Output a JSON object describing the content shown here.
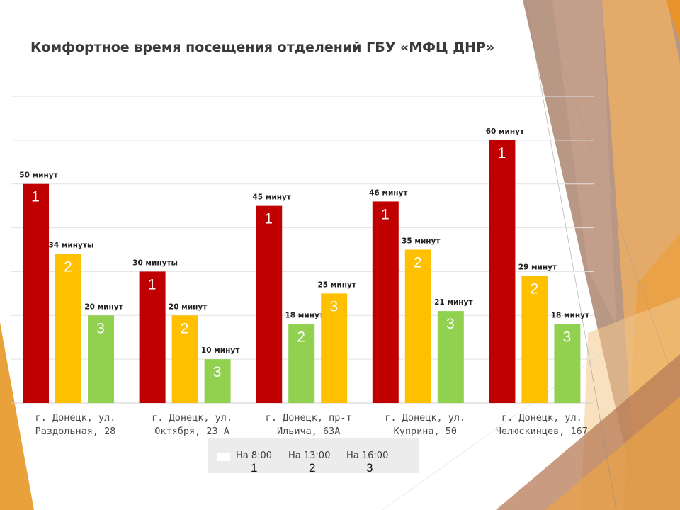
{
  "chart_data": {
    "type": "bar",
    "title": "Комфортное время посещения отделений ГБУ «МФЦ ДНР»",
    "categories": [
      [
        "г. Донецк, ул.",
        "Раздольная, 28"
      ],
      [
        "г. Донецк, ул.",
        "Октября, 23 А"
      ],
      [
        "г. Донецк, пр-т",
        "Ильича, 63А"
      ],
      [
        "г. Донецк, ул.",
        "Куприна, 50"
      ],
      [
        "г. Донецк, ул.",
        "Челюскинцев, 167"
      ]
    ],
    "series": [
      {
        "name": "На 8:00",
        "marker": "1",
        "color": "#c00000",
        "values": [
          50,
          30,
          45,
          46,
          60
        ],
        "labels": [
          "50 минут",
          "30 минуты",
          "45 минут",
          "46 минут",
          "60 минут"
        ],
        "bar_colors": [
          "#c00000",
          "#c00000",
          "#c00000",
          "#c00000",
          "#c00000"
        ]
      },
      {
        "name": "На 13:00",
        "marker": "2",
        "color": "#ffc000",
        "values": [
          34,
          20,
          18,
          35,
          29
        ],
        "labels": [
          "34 минуты",
          "20 минут",
          "18 минут",
          "35 минут",
          "29 минут"
        ],
        "bar_colors": [
          "#ffc000",
          "#ffc000",
          "#92d050",
          "#ffc000",
          "#ffc000"
        ]
      },
      {
        "name": "На 16:00",
        "marker": "3",
        "color": "#92d050",
        "values": [
          20,
          10,
          25,
          21,
          18
        ],
        "labels": [
          "20 минут",
          "10 минут",
          "25 минут",
          "21 минут",
          "18 минут"
        ],
        "bar_colors": [
          "#92d050",
          "#92d050",
          "#ffc000",
          "#92d050",
          "#92d050"
        ]
      }
    ],
    "ylim": [
      0,
      70
    ],
    "grid": true,
    "legend": "bottom"
  },
  "legend": {
    "items": [
      {
        "label": "На 8:00",
        "num": "1"
      },
      {
        "label": "На 13:00",
        "num": "2"
      },
      {
        "label": "На 16:00",
        "num": "3"
      }
    ]
  }
}
